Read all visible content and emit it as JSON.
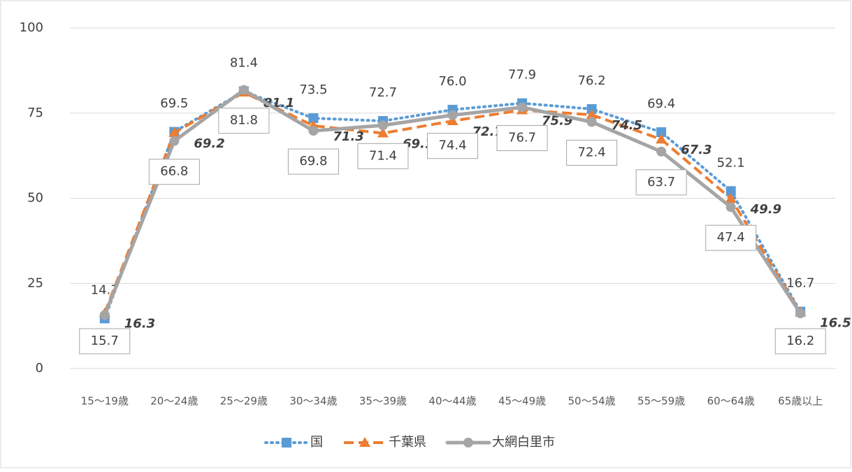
{
  "chart_data": {
    "type": "line",
    "categories": [
      "15～19歳",
      "20～24歳",
      "25～29歳",
      "30～34歳",
      "35～39歳",
      "40～44歳",
      "45～49歳",
      "50～54歳",
      "55～59歳",
      "60～64歳",
      "65歳以上"
    ],
    "series": [
      {
        "name": "国",
        "color": "#5b9bd5",
        "values": [
          14.7,
          69.5,
          81.4,
          73.5,
          72.7,
          76.0,
          77.9,
          76.2,
          69.4,
          52.1,
          16.7
        ],
        "value_labels": [
          "14.7",
          "69.5",
          "81.4",
          "73.5",
          "72.7",
          "76.0",
          "77.9",
          "76.2",
          "69.4",
          "52.1",
          "16.7"
        ]
      },
      {
        "name": "千葉県",
        "color": "#ed7d31",
        "values": [
          16.3,
          69.2,
          81.1,
          71.3,
          69.1,
          72.7,
          75.9,
          74.5,
          67.3,
          49.9,
          16.5
        ],
        "value_labels": [
          "16.3",
          "69.2",
          "81.1",
          "71.3",
          "69.1",
          "72.7",
          "75.9",
          "74.5",
          "67.3",
          "49.9",
          "16.5"
        ]
      },
      {
        "name": "大網白里市",
        "color": "#a5a5a5",
        "values": [
          15.7,
          66.8,
          81.8,
          69.8,
          71.4,
          74.4,
          76.7,
          72.4,
          63.7,
          47.4,
          16.2
        ],
        "value_labels": [
          "15.7",
          "66.8",
          "81.8",
          "69.8",
          "71.4",
          "74.4",
          "76.7",
          "72.4",
          "63.7",
          "47.4",
          "16.2"
        ]
      }
    ],
    "ylim": [
      0,
      100
    ],
    "yticks": [
      0,
      25,
      50,
      75,
      100
    ],
    "grid": true,
    "legend": "bottom"
  }
}
